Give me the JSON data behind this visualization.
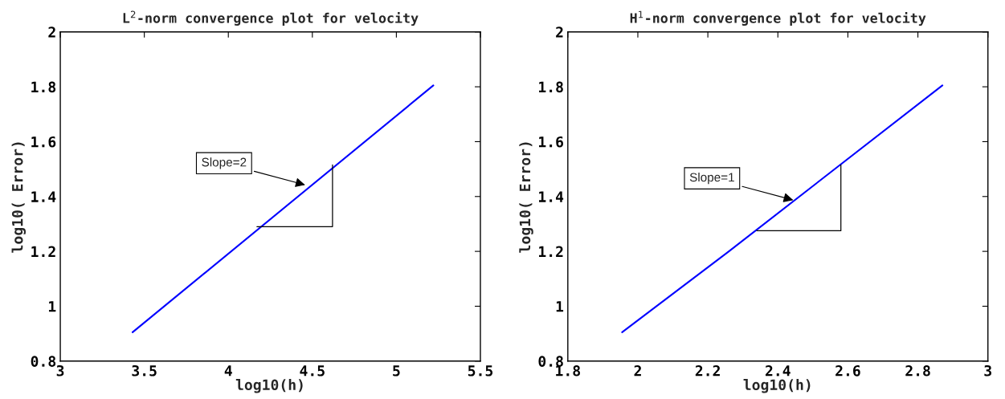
{
  "chart_data": [
    {
      "type": "line",
      "title": "L$^{2}$-norm convergence plot for velocity",
      "xlabel": "log10(h)",
      "ylabel": "log10( Error)",
      "xlim": [
        3,
        5.5
      ],
      "xticks": [
        3,
        3.5,
        4,
        4.5,
        5,
        5.5
      ],
      "ylim": [
        0.8,
        2
      ],
      "yticks": [
        0.8,
        1,
        1.2,
        1.4,
        1.6,
        1.8,
        2
      ],
      "grid": false,
      "legend": false,
      "series": [
        {
          "color": "#0000ff",
          "x": [
            3.43,
            5.22
          ],
          "values": [
            0.905,
            1.805
          ]
        },
        {
          "color": "#000000",
          "x": [
            4.17,
            4.62,
            4.62
          ],
          "values": [
            1.29,
            1.29,
            1.515
          ]
        }
      ],
      "annotations": [
        {
          "text": "Slope=2",
          "x": 4.47,
          "y": 1.44
        }
      ]
    },
    {
      "type": "line",
      "title": "H$^{1}$-norm convergence plot for velocity",
      "xlabel": "log10(h)",
      "ylabel": "log10( Error)",
      "xlim": [
        1.8,
        3
      ],
      "xticks": [
        1.8,
        2,
        2.2,
        2.4,
        2.6,
        2.8,
        3
      ],
      "ylim": [
        0.8,
        2
      ],
      "yticks": [
        0.8,
        1,
        1.2,
        1.4,
        1.6,
        1.8,
        2
      ],
      "grid": false,
      "legend": false,
      "series": [
        {
          "color": "#0000ff",
          "x": [
            1.955,
            2.26,
            2.87
          ],
          "values": [
            0.905,
            1.2,
            1.805
          ]
        },
        {
          "color": "#000000",
          "x": [
            2.34,
            2.58,
            2.58
          ],
          "values": [
            1.275,
            1.275,
            1.515
          ]
        }
      ],
      "annotations": [
        {
          "text": "Slope=1",
          "x": 2.45,
          "y": 1.385
        }
      ]
    }
  ]
}
